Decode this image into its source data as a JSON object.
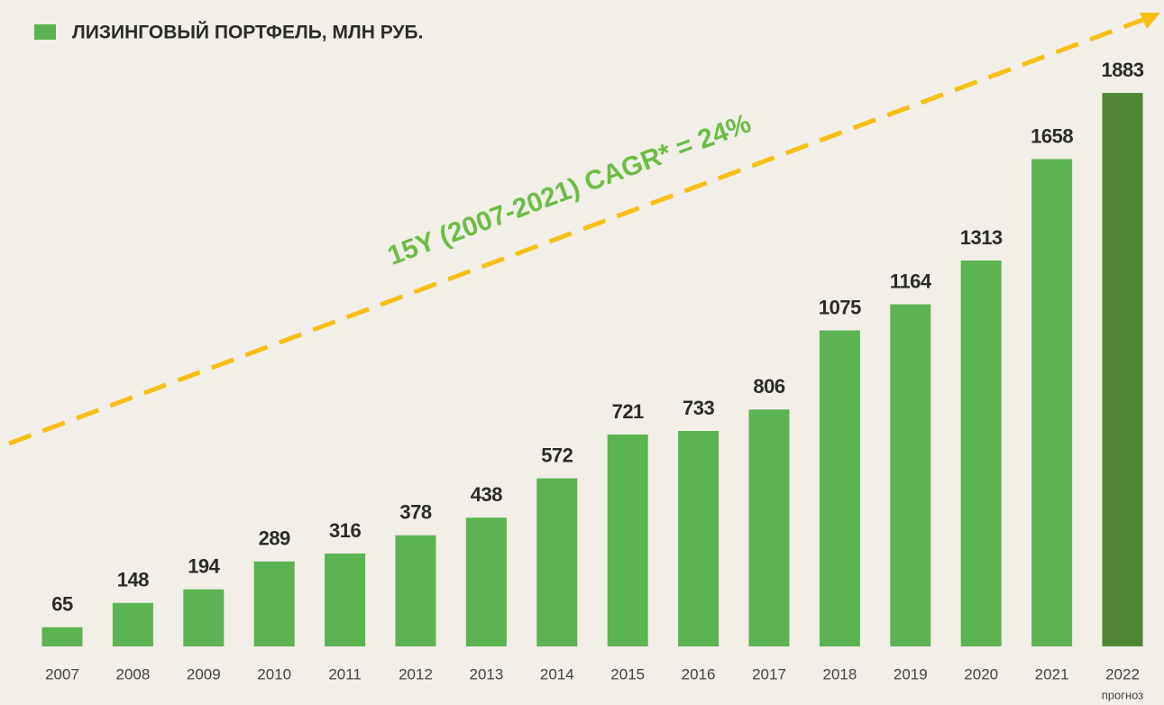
{
  "chart_data": {
    "type": "bar",
    "title": "ЛИЗИНГОВЫЙ ПОРТФЕЛЬ, МЛН РУБ.",
    "annotation": "15Y (2007-2021) CAGR* = 24%",
    "categories": [
      "2007",
      "2008",
      "2009",
      "2010",
      "2011",
      "2012",
      "2013",
      "2014",
      "2015",
      "2016",
      "2017",
      "2018",
      "2019",
      "2020",
      "2021",
      "2022"
    ],
    "category_notes": [
      null,
      null,
      null,
      null,
      null,
      null,
      null,
      null,
      null,
      null,
      null,
      null,
      null,
      null,
      null,
      "прогноз"
    ],
    "values": [
      65,
      148,
      194,
      289,
      316,
      378,
      438,
      572,
      721,
      733,
      806,
      1075,
      1164,
      1313,
      1658,
      1883
    ],
    "colors": [
      "#5bb451",
      "#5bb451",
      "#5bb451",
      "#5bb451",
      "#5bb451",
      "#5bb451",
      "#5bb451",
      "#5bb451",
      "#5bb451",
      "#5bb451",
      "#5bb451",
      "#5bb451",
      "#5bb451",
      "#5bb451",
      "#5bb451",
      "#4f8634"
    ],
    "legend_color": "#5bb451",
    "annotation_color": "#6cbd45",
    "trend_color": "#f7bf12",
    "ylim": [
      0,
      2000
    ]
  }
}
